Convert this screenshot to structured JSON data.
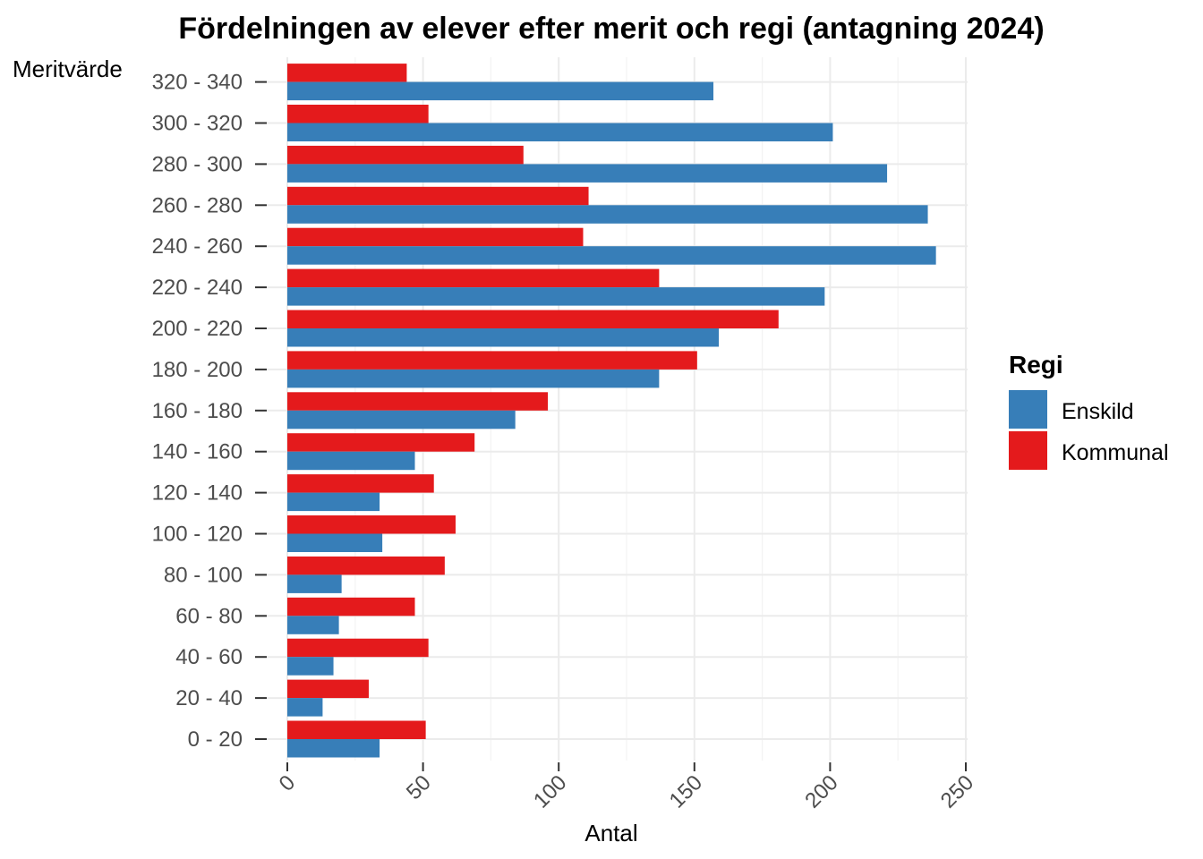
{
  "chart_data": {
    "type": "bar",
    "orientation": "horizontal",
    "title": "Fördelningen av elever efter merit och regi (antagning 2024)",
    "xlabel": "Antal",
    "ylabel": "Meritvärde",
    "xlim": [
      0,
      250
    ],
    "x_ticks": [
      0,
      50,
      100,
      150,
      200,
      250
    ],
    "grid": true,
    "legend": {
      "title": "Regi",
      "position": "right"
    },
    "categories": [
      "0 - 20",
      "20 - 40",
      "40 - 60",
      "60 - 80",
      "80 - 100",
      "100 - 120",
      "120 - 140",
      "140 - 160",
      "160 - 180",
      "180 - 200",
      "200 - 220",
      "220 - 240",
      "240 - 260",
      "260 - 280",
      "280 - 300",
      "300 - 320",
      "320 - 340"
    ],
    "series": [
      {
        "name": "Enskild",
        "color": "#377eb8",
        "values": [
          34,
          13,
          17,
          19,
          20,
          35,
          34,
          47,
          84,
          137,
          159,
          198,
          239,
          236,
          221,
          201,
          157
        ]
      },
      {
        "name": "Kommunal",
        "color": "#e41a1c",
        "values": [
          51,
          30,
          52,
          47,
          58,
          62,
          54,
          69,
          96,
          151,
          181,
          137,
          109,
          111,
          87,
          52,
          44
        ]
      }
    ]
  }
}
